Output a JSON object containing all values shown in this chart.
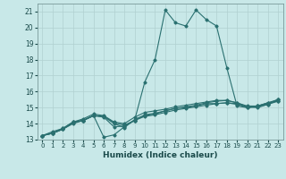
{
  "xlabel": "Humidex (Indice chaleur)",
  "bg_color": "#c8e8e8",
  "line_color": "#2a7070",
  "grid_color": "#b0d0d0",
  "xlim": [
    -0.5,
    23.5
  ],
  "ylim": [
    13.0,
    21.5
  ],
  "yticks": [
    13,
    14,
    15,
    16,
    17,
    18,
    19,
    20,
    21
  ],
  "xticks": [
    0,
    1,
    2,
    3,
    4,
    5,
    6,
    7,
    8,
    9,
    10,
    11,
    12,
    13,
    14,
    15,
    16,
    17,
    18,
    19,
    20,
    21,
    22,
    23
  ],
  "lines": [
    {
      "x": [
        0,
        1,
        2,
        3,
        4,
        5,
        6,
        7,
        8,
        9,
        10,
        11,
        12,
        13,
        14,
        15,
        16,
        17,
        18,
        19,
        20,
        21,
        22,
        23
      ],
      "y": [
        13.25,
        13.4,
        13.65,
        14.1,
        14.2,
        14.5,
        13.15,
        13.3,
        13.8,
        14.2,
        16.6,
        18.0,
        21.1,
        20.3,
        20.1,
        21.1,
        20.5,
        20.1,
        17.5,
        15.1,
        15.0,
        15.1,
        15.3,
        15.4
      ]
    },
    {
      "x": [
        0,
        1,
        2,
        3,
        4,
        5,
        6,
        7,
        8,
        9,
        10,
        11,
        12,
        13,
        14,
        15,
        16,
        17,
        18,
        19,
        20,
        21,
        22,
        23
      ],
      "y": [
        13.25,
        13.4,
        13.65,
        14.05,
        14.2,
        14.5,
        14.45,
        14.0,
        13.75,
        14.25,
        14.55,
        14.65,
        14.8,
        14.95,
        15.05,
        15.15,
        15.3,
        15.4,
        15.45,
        15.3,
        15.05,
        15.1,
        15.3,
        15.5
      ]
    },
    {
      "x": [
        0,
        1,
        2,
        3,
        4,
        5,
        6,
        7,
        8,
        9,
        10,
        11,
        12,
        13,
        14,
        15,
        16,
        17,
        18,
        19,
        20,
        21,
        22,
        23
      ],
      "y": [
        13.25,
        13.4,
        13.65,
        14.0,
        14.2,
        14.5,
        14.4,
        13.8,
        13.85,
        14.2,
        14.45,
        14.55,
        14.7,
        14.85,
        14.95,
        15.05,
        15.15,
        15.25,
        15.3,
        15.25,
        15.05,
        15.0,
        15.2,
        15.5
      ]
    },
    {
      "x": [
        0,
        1,
        2,
        3,
        4,
        5,
        6,
        7,
        8,
        9,
        10,
        11,
        12,
        13,
        14,
        15,
        16,
        17,
        18,
        19,
        20,
        21,
        22,
        23
      ],
      "y": [
        13.25,
        13.4,
        13.7,
        14.1,
        14.3,
        14.6,
        14.5,
        14.1,
        14.0,
        14.4,
        14.7,
        14.8,
        14.9,
        15.05,
        15.15,
        15.25,
        15.35,
        15.45,
        15.45,
        15.3,
        15.1,
        15.1,
        15.25,
        15.5
      ]
    },
    {
      "x": [
        0,
        1,
        2,
        3,
        4,
        5,
        6,
        7,
        8,
        9,
        10,
        11,
        12,
        13,
        14,
        15,
        16,
        17,
        18,
        19,
        20,
        21,
        22,
        23
      ],
      "y": [
        13.25,
        13.5,
        13.7,
        14.1,
        14.2,
        14.5,
        14.45,
        14.05,
        13.9,
        14.2,
        14.5,
        14.6,
        14.8,
        14.95,
        15.0,
        15.1,
        15.25,
        15.25,
        15.3,
        15.2,
        15.0,
        15.05,
        15.2,
        15.4
      ]
    }
  ]
}
